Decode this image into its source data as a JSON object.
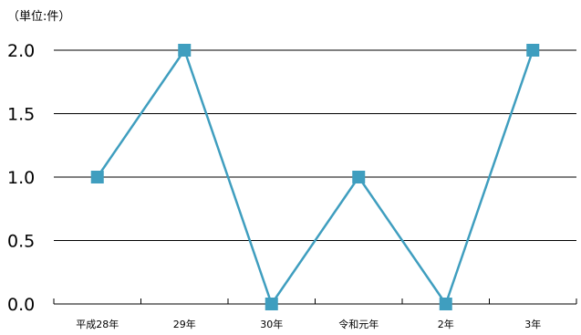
{
  "chart_data": {
    "type": "line",
    "unit_note": "（単位:件）",
    "categories": [
      "平成28年",
      "29年",
      "30年",
      "令和元年",
      "2年",
      "3年"
    ],
    "series": [
      {
        "values": [
          1,
          2,
          0,
          1,
          0,
          2
        ]
      }
    ],
    "ylim": [
      0,
      2
    ],
    "yticks": [
      "0.0",
      "0.5",
      "1.0",
      "1.5",
      "2.0"
    ],
    "ytick_values": [
      0,
      0.5,
      1,
      1.5,
      2
    ],
    "grid": "horizontal",
    "legend": "none",
    "colors": {
      "series": "#3f9ebf",
      "marker_fill": "#3f9ebf",
      "gridline": "#000000",
      "axis": "#000000"
    }
  }
}
